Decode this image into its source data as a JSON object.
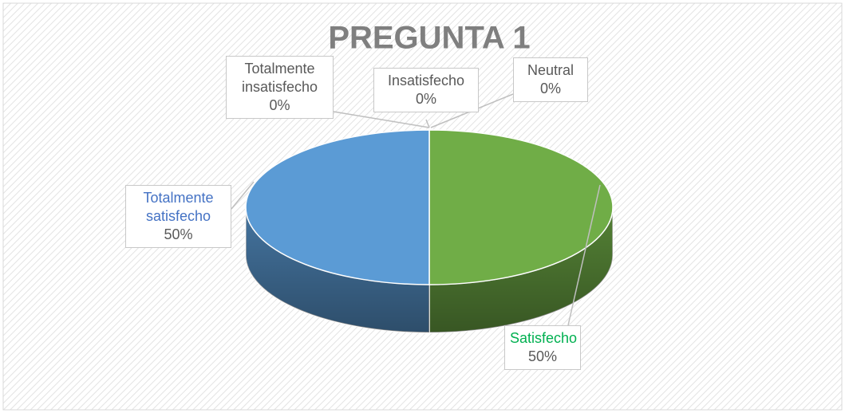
{
  "chart_data": {
    "type": "pie3d",
    "title": "PREGUNTA 1",
    "categories": [
      "Totalmente insatisfecho",
      "Insatisfecho",
      "Neutral",
      "Satisfecho",
      "Totalmente satisfecho"
    ],
    "values": [
      0,
      0,
      0,
      50,
      50
    ],
    "value_labels": [
      "0%",
      "0%",
      "0%",
      "50%",
      "50%"
    ],
    "colors": [
      "#a5a5a5",
      "#ed7d31",
      "#ffc000",
      "#70ad47",
      "#5b9bd5"
    ],
    "label_colors": [
      "#595959",
      "#595959",
      "#595959",
      "#00b050",
      "#4472c4"
    ]
  }
}
